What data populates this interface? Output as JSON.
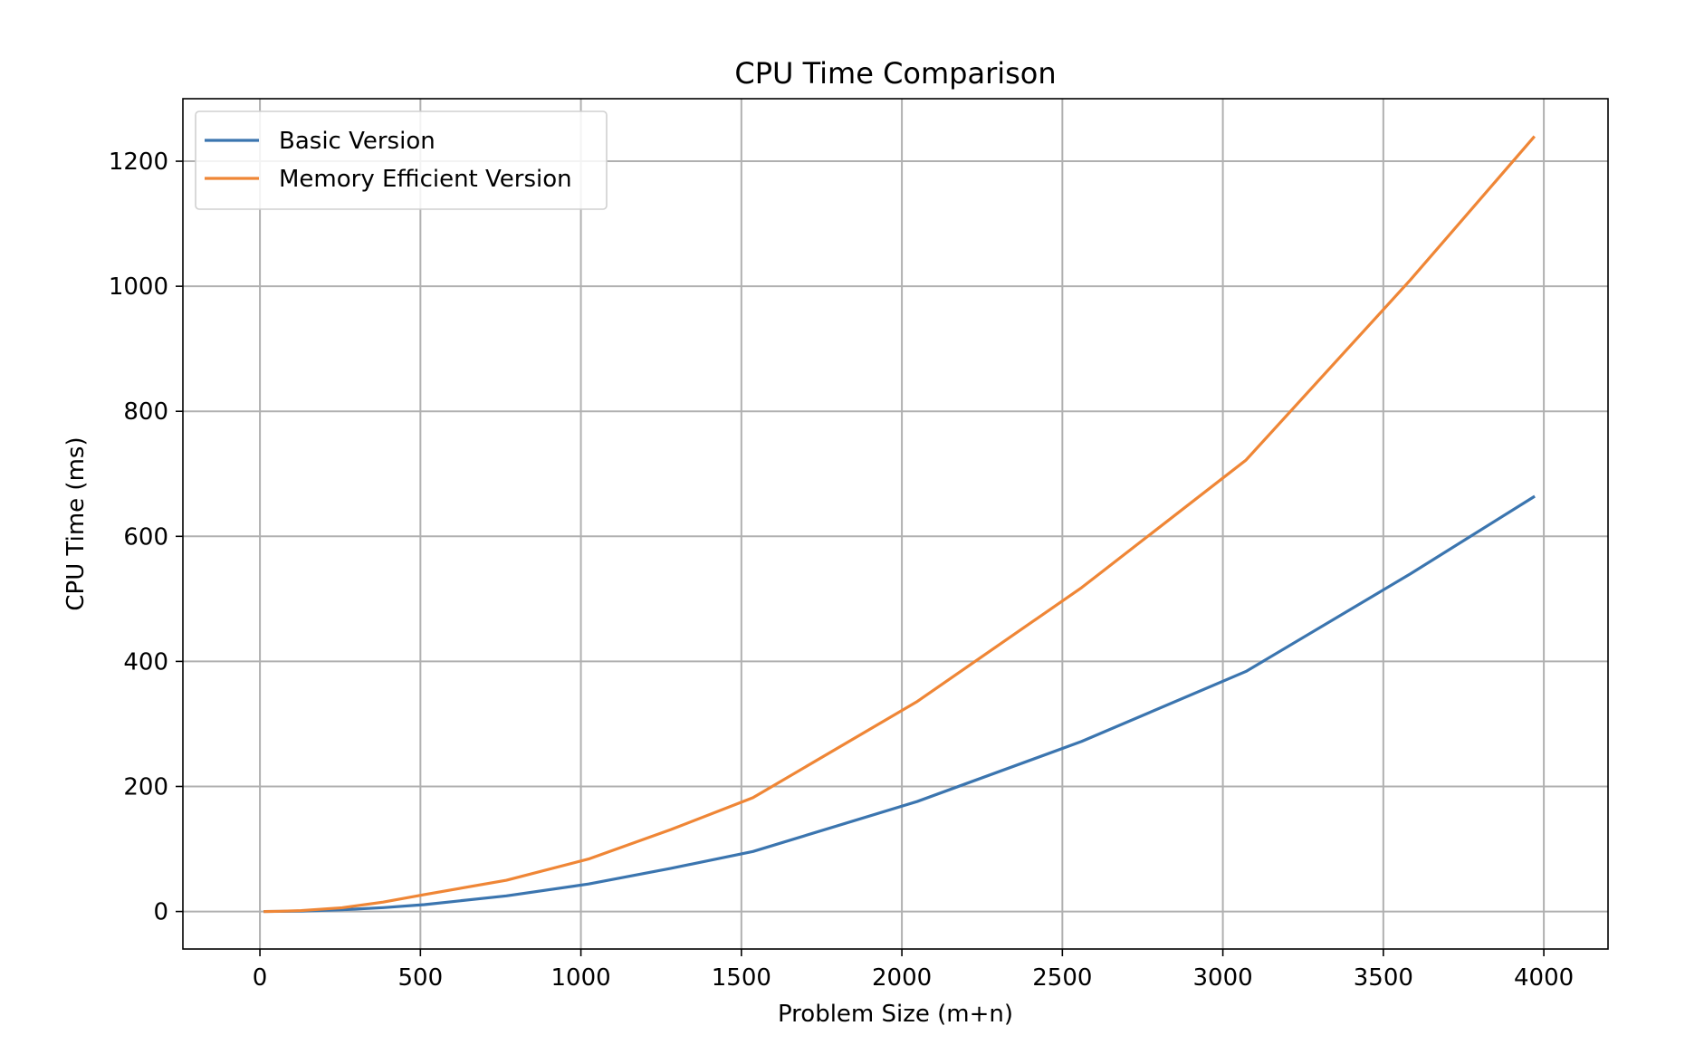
{
  "chart_data": {
    "type": "line",
    "title": "CPU Time Comparison",
    "xlabel": "Problem Size (m+n)",
    "ylabel": "CPU Time (ms)",
    "xlim": [
      -240,
      4200
    ],
    "ylim": [
      -60,
      1300
    ],
    "xticks": [
      0,
      500,
      1000,
      1500,
      2000,
      2500,
      3000,
      3500,
      4000
    ],
    "yticks": [
      0,
      200,
      400,
      600,
      800,
      1000,
      1200
    ],
    "grid": true,
    "legend_position": "upper-left",
    "x": [
      16,
      64,
      128,
      256,
      384,
      512,
      768,
      1024,
      1280,
      1536,
      2048,
      2560,
      3072,
      3584,
      3968
    ],
    "series": [
      {
        "name": "Basic Version",
        "color": "#3b75af",
        "values": [
          0.0,
          0.2,
          0.7,
          2.8,
          6.2,
          11,
          25,
          44,
          69,
          96,
          176,
          272,
          384,
          540,
          663
        ]
      },
      {
        "name": "Memory Efficient Version",
        "color": "#ef8636",
        "values": [
          0.0,
          0.4,
          1.5,
          6.0,
          15,
          27,
          50,
          84,
          131,
          182,
          336,
          518,
          722,
          1010,
          1238
        ]
      }
    ]
  }
}
